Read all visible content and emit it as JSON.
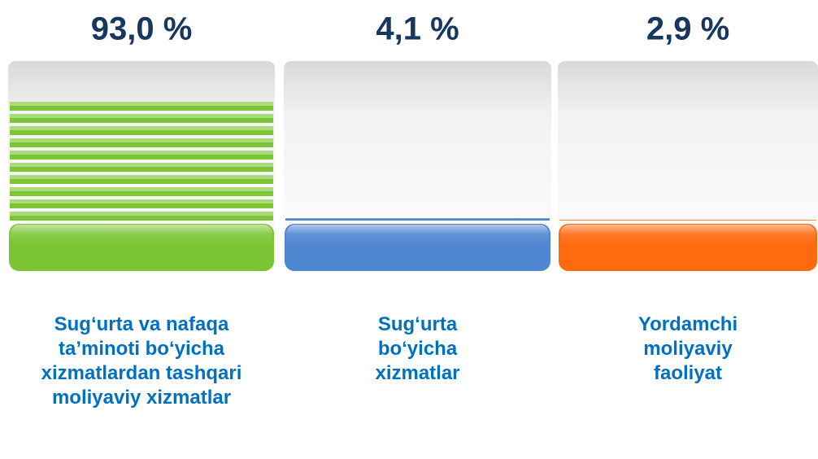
{
  "chart_data": {
    "type": "bar",
    "categories": [
      "Sug‘urta va nafaqa ta’minoti bo‘yicha xizmatlardan tashqari moliyaviy xizmatlar",
      "Sug‘urta bo‘yicha xizmatlar",
      "Yordamchi moliyaviy faoliyat"
    ],
    "values": [
      93.0,
      4.1,
      2.9
    ],
    "value_labels": [
      "93,0 %",
      "4,1 %",
      "2,9 %"
    ],
    "colors": [
      "#7cc635",
      "#4f86d0",
      "#ff6a0f"
    ]
  }
}
